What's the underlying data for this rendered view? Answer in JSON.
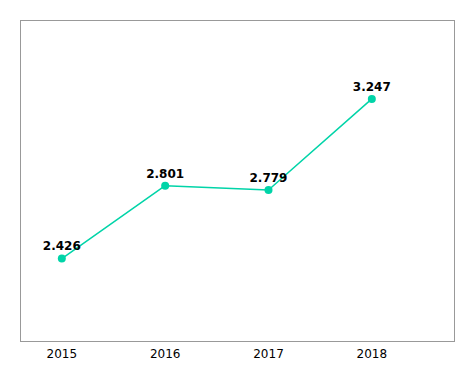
{
  "chart_data": {
    "type": "line",
    "x": [
      2015,
      2016,
      2017,
      2018
    ],
    "values": [
      2.426,
      2.801,
      2.779,
      3.247
    ],
    "color": "#00d4a8",
    "marker": "circle",
    "line_style": "solid",
    "data_labels": true,
    "xlim": [
      2014.6,
      2018.8
    ],
    "xticks": [
      2015,
      2016,
      2017,
      2018
    ],
    "ylim": [
      2.0,
      3.65
    ],
    "yticks": [],
    "tick_labels": "x",
    "grid": false
  }
}
